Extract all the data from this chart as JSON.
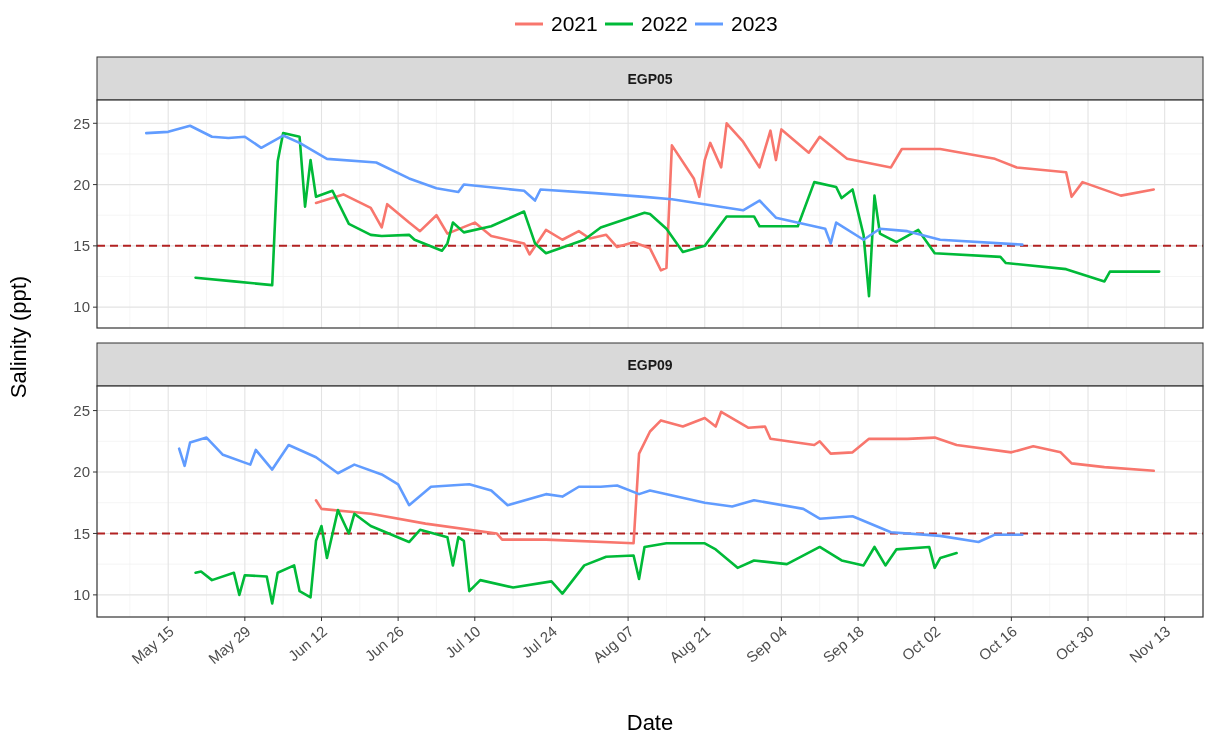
{
  "chart_data": [
    {
      "type": "line",
      "title": "EGP05",
      "ylabel": "Salinity (ppt)",
      "legend": "top",
      "grid": true,
      "tick_labels": "y",
      "line_style": "solid",
      "marker": "none",
      "xlim": [
        "--05-02",
        "--11-20"
      ],
      "xticks": [
        {
          "value": "--05-15",
          "label": null
        },
        {
          "value": "--05-29",
          "label": null
        },
        {
          "value": "--06-12",
          "label": null
        },
        {
          "value": "--06-26",
          "label": null
        },
        {
          "value": "--07-10",
          "label": null
        },
        {
          "value": "--07-24",
          "label": null
        },
        {
          "value": "--08-07",
          "label": null
        },
        {
          "value": "--08-21",
          "label": null
        },
        {
          "value": "--09-04",
          "label": null
        },
        {
          "value": "--09-18",
          "label": null
        },
        {
          "value": "--10-02",
          "label": null
        },
        {
          "value": "--10-16",
          "label": null
        },
        {
          "value": "--10-30",
          "label": null
        },
        {
          "value": "--11-13",
          "label": null
        }
      ],
      "ylim": [
        8.3,
        26.9
      ],
      "yticks": [
        10,
        15,
        20,
        25
      ],
      "ref_lines": [
        {
          "axis": "y",
          "value": 15,
          "label": null,
          "color": "#b22222",
          "line_style": "dashed"
        }
      ],
      "series": [
        {
          "name": "2021",
          "color": "#f8766d",
          "x": [
            "--06-11",
            "--06-16",
            "--06-21",
            "--06-23",
            "--06-24",
            "--06-28",
            "--06-30",
            "--07-03",
            "--07-05",
            "--07-10",
            "--07-13",
            "--07-19",
            "--07-20",
            "--07-23",
            "--07-26",
            "--07-29",
            "--07-31",
            "--08-03",
            "--08-05",
            "--08-08",
            "--08-11",
            "--08-13",
            "--08-14",
            "--08-15",
            "--08-19",
            "--08-20",
            "--08-21",
            "--08-22",
            "--08-24",
            "--08-25",
            "--08-28",
            "--08-31",
            "--09-02",
            "--09-03",
            "--09-04",
            "--09-09",
            "--09-11",
            "--09-16",
            "--09-24",
            "--09-26",
            "--10-03",
            "--10-13",
            "--10-17",
            "--10-26",
            "--10-27",
            "--10-29",
            "--11-05",
            "--11-11"
          ],
          "values": [
            18.5,
            19.2,
            18.1,
            16.5,
            18.4,
            16.9,
            16.2,
            17.5,
            16.0,
            16.9,
            15.8,
            15.2,
            14.3,
            16.3,
            15.5,
            16.2,
            15.6,
            15.9,
            14.9,
            15.3,
            14.8,
            13.0,
            13.2,
            23.2,
            20.5,
            19.0,
            22.0,
            23.4,
            21.4,
            25.0,
            23.5,
            21.4,
            24.4,
            22.0,
            24.5,
            22.6,
            23.9,
            22.1,
            21.4,
            22.9,
            22.9,
            22.1,
            21.4,
            21.0,
            19.0,
            20.2,
            19.1,
            19.6
          ]
        },
        {
          "name": "2022",
          "color": "#00ba38",
          "x": [
            "--05-20",
            "--05-27",
            "--06-03",
            "--06-04",
            "--06-05",
            "--06-08",
            "--06-09",
            "--06-10",
            "--06-11",
            "--06-14",
            "--06-17",
            "--06-21",
            "--06-23",
            "--06-28",
            "--06-29",
            "--07-04",
            "--07-05",
            "--07-06",
            "--07-08",
            "--07-13",
            "--07-19",
            "--07-21",
            "--07-23",
            "--07-30",
            "--08-02",
            "--08-10",
            "--08-11",
            "--08-14",
            "--08-17",
            "--08-21",
            "--08-25",
            "--08-30",
            "--08-31",
            "--09-07",
            "--09-10",
            "--09-14",
            "--09-15",
            "--09-17",
            "--09-19",
            "--09-20",
            "--09-21",
            "--09-22",
            "--09-25",
            "--09-29",
            "--10-02",
            "--10-14",
            "--10-15",
            "--10-26",
            "--11-02",
            "--11-03",
            "--11-12"
          ],
          "values": [
            12.4,
            12.1,
            11.8,
            21.9,
            24.2,
            23.9,
            18.2,
            22.0,
            19.0,
            19.5,
            16.8,
            15.9,
            15.8,
            15.9,
            15.5,
            14.6,
            15.2,
            16.9,
            16.1,
            16.6,
            17.8,
            15.2,
            14.4,
            15.5,
            16.5,
            17.7,
            17.6,
            16.4,
            14.5,
            15.0,
            17.4,
            17.4,
            16.6,
            16.6,
            20.2,
            19.8,
            18.9,
            19.6,
            15.9,
            10.9,
            19.1,
            16.0,
            15.3,
            16.3,
            14.4,
            14.1,
            13.6,
            13.1,
            12.1,
            12.9,
            12.9
          ]
        },
        {
          "name": "2023",
          "color": "#619cff",
          "x": [
            "--05-11",
            "--05-15",
            "--05-19",
            "--05-23",
            "--05-26",
            "--05-29",
            "--06-01",
            "--06-05",
            "--06-08",
            "--06-13",
            "--06-22",
            "--06-28",
            "--07-03",
            "--07-07",
            "--07-08",
            "--07-19",
            "--07-21",
            "--07-22",
            "--08-01",
            "--08-10",
            "--08-15",
            "--08-28",
            "--08-31",
            "--09-03",
            "--09-12",
            "--09-13",
            "--09-14",
            "--09-19",
            "--09-22",
            "--09-27",
            "--10-03",
            "--10-18"
          ],
          "values": [
            24.2,
            24.3,
            24.8,
            23.9,
            23.8,
            23.9,
            23.0,
            24.0,
            23.4,
            22.1,
            21.8,
            20.5,
            19.7,
            19.4,
            20.0,
            19.5,
            18.7,
            19.6,
            19.3,
            19.0,
            18.8,
            17.9,
            18.7,
            17.3,
            16.4,
            15.2,
            16.9,
            15.5,
            16.4,
            16.2,
            15.5,
            15.1
          ]
        }
      ]
    },
    {
      "type": "line",
      "title": "EGP09",
      "xlabel": "Date",
      "grid": true,
      "line_style": "solid",
      "marker": "none",
      "xlim": [
        "--05-02",
        "--11-20"
      ],
      "xticks": [
        {
          "value": "--05-15",
          "label": "May 15"
        },
        {
          "value": "--05-29",
          "label": "May 29"
        },
        {
          "value": "--06-12",
          "label": "Jun 12"
        },
        {
          "value": "--06-26",
          "label": "Jun 26"
        },
        {
          "value": "--07-10",
          "label": "Jul 10"
        },
        {
          "value": "--07-24",
          "label": "Jul 24"
        },
        {
          "value": "--08-07",
          "label": "Aug 07"
        },
        {
          "value": "--08-21",
          "label": "Aug 21"
        },
        {
          "value": "--09-04",
          "label": "Sep 04"
        },
        {
          "value": "--09-18",
          "label": "Sep 18"
        },
        {
          "value": "--10-02",
          "label": "Oct 02"
        },
        {
          "value": "--10-16",
          "label": "Oct 16"
        },
        {
          "value": "--10-30",
          "label": "Oct 30"
        },
        {
          "value": "--11-13",
          "label": "Nov 13"
        }
      ],
      "ylim": [
        8.2,
        27.0
      ],
      "yticks": [
        10,
        15,
        20,
        25
      ],
      "ref_lines": [
        {
          "axis": "y",
          "value": 15,
          "label": null,
          "color": "#b22222",
          "line_style": "dashed"
        }
      ],
      "series": [
        {
          "color": "#f8766d",
          "x": [
            "--06-11",
            "--06-12",
            "--06-21",
            "--07-01",
            "--07-14",
            "--07-15",
            "--07-23",
            "--08-08",
            "--08-09",
            "--08-11",
            "--08-13",
            "--08-17",
            "--08-21",
            "--08-23",
            "--08-24",
            "--08-29",
            "--09-01",
            "--09-02",
            "--09-10",
            "--09-11",
            "--09-13",
            "--09-17",
            "--09-20",
            "--09-27",
            "--10-02",
            "--10-06",
            "--10-16",
            "--10-20",
            "--10-25",
            "--10-27",
            "--11-02",
            "--11-11"
          ],
          "values": [
            17.7,
            17.0,
            16.6,
            15.8,
            15.0,
            14.5,
            14.5,
            14.2,
            21.5,
            23.3,
            24.2,
            23.7,
            24.4,
            23.7,
            24.9,
            23.6,
            23.7,
            22.7,
            22.2,
            22.5,
            21.5,
            21.6,
            22.7,
            22.7,
            22.8,
            22.2,
            21.6,
            22.1,
            21.6,
            20.7,
            20.4,
            20.1
          ]
        },
        {
          "color": "#00ba38",
          "x": [
            "--05-20",
            "--05-21",
            "--05-23",
            "--05-27",
            "--05-28",
            "--05-29",
            "--06-02",
            "--06-03",
            "--06-04",
            "--06-07",
            "--06-08",
            "--06-10",
            "--06-11",
            "--06-12",
            "--06-13",
            "--06-15",
            "--06-17",
            "--06-18",
            "--06-21",
            "--06-28",
            "--06-30",
            "--07-05",
            "--07-06",
            "--07-07",
            "--07-08",
            "--07-09",
            "--07-11",
            "--07-17",
            "--07-24",
            "--07-26",
            "--07-30",
            "--08-03",
            "--08-08",
            "--08-09",
            "--08-10",
            "--08-14",
            "--08-21",
            "--08-23",
            "--08-27",
            "--08-30",
            "--09-05",
            "--09-11",
            "--09-15",
            "--09-19",
            "--09-21",
            "--09-23",
            "--09-25",
            "--10-01",
            "--10-02",
            "--10-03",
            "--10-06"
          ],
          "values": [
            11.8,
            11.9,
            11.2,
            11.8,
            10.0,
            11.6,
            11.5,
            9.3,
            11.8,
            12.4,
            10.3,
            9.8,
            14.4,
            15.6,
            13.0,
            16.9,
            15.0,
            16.6,
            15.6,
            14.3,
            15.3,
            14.7,
            12.4,
            14.7,
            14.4,
            10.3,
            11.2,
            10.6,
            11.1,
            10.1,
            12.4,
            13.1,
            13.2,
            11.3,
            13.9,
            14.2,
            14.2,
            13.7,
            12.2,
            12.8,
            12.5,
            13.9,
            12.8,
            12.4,
            13.9,
            12.4,
            13.7,
            13.9,
            12.2,
            13.0,
            13.4
          ]
        },
        {
          "color": "#619cff",
          "x": [
            "--05-17",
            "--05-18",
            "--05-19",
            "--05-22",
            "--05-25",
            "--05-30",
            "--05-31",
            "--06-03",
            "--06-06",
            "--06-11",
            "--06-15",
            "--06-18",
            "--06-23",
            "--06-26",
            "--06-28",
            "--07-02",
            "--07-09",
            "--07-13",
            "--07-16",
            "--07-23",
            "--07-26",
            "--07-29",
            "--08-02",
            "--08-05",
            "--08-09",
            "--08-11",
            "--08-21",
            "--08-26",
            "--08-30",
            "--09-08",
            "--09-11",
            "--09-17",
            "--09-24",
            "--10-03",
            "--10-10",
            "--10-13",
            "--10-18"
          ],
          "values": [
            21.9,
            20.5,
            22.4,
            22.8,
            21.4,
            20.6,
            21.8,
            20.2,
            22.2,
            21.2,
            19.9,
            20.6,
            19.8,
            19.0,
            17.3,
            18.8,
            19.0,
            18.5,
            17.3,
            18.2,
            18.0,
            18.8,
            18.8,
            18.9,
            18.2,
            18.5,
            17.5,
            17.2,
            17.7,
            17.0,
            16.2,
            16.4,
            15.1,
            14.8,
            14.3,
            14.9,
            14.9
          ]
        }
      ]
    }
  ]
}
